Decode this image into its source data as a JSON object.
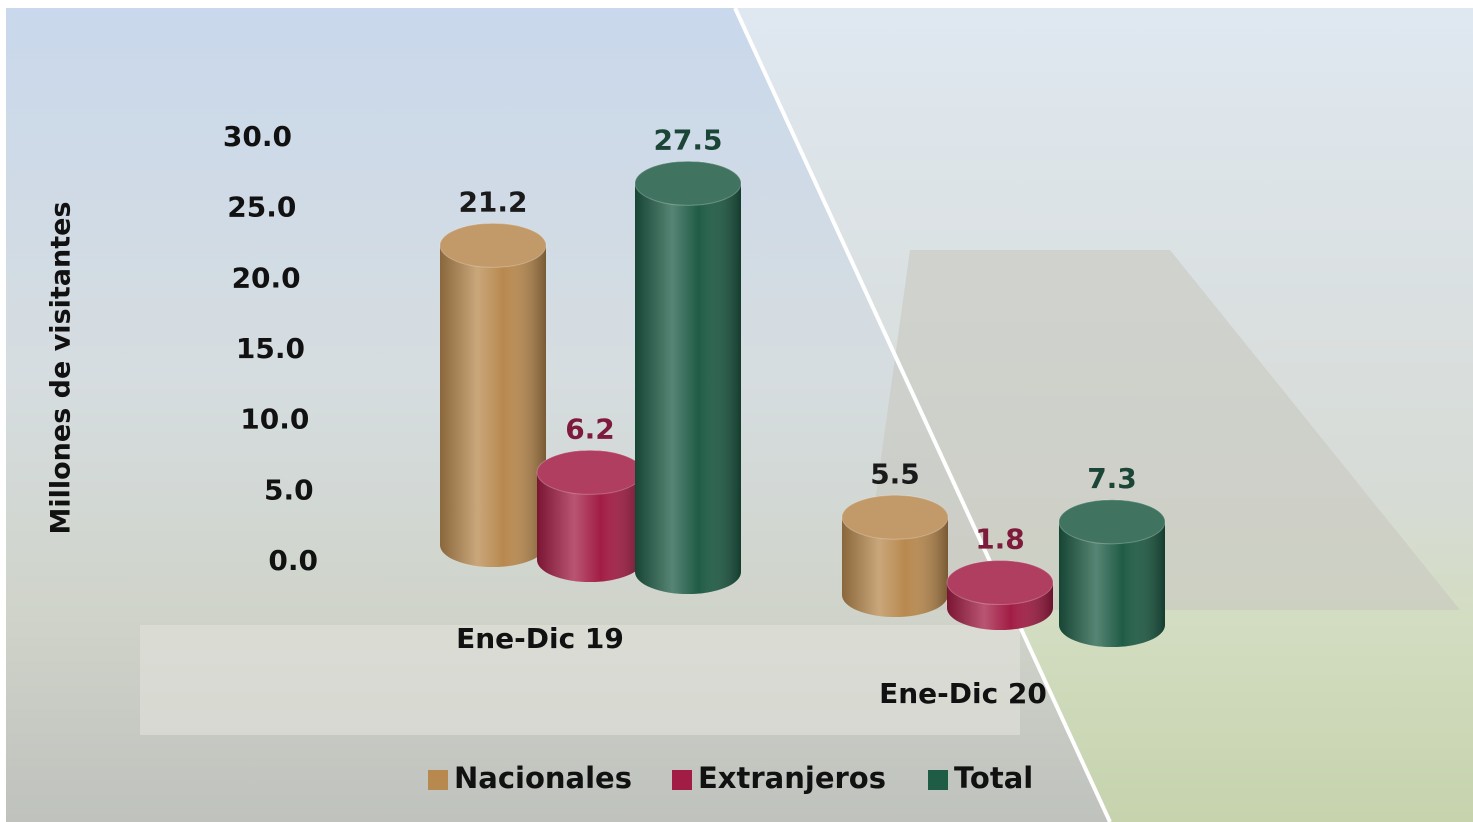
{
  "chart_data": {
    "type": "bar",
    "y_label": "Millones de visitantes",
    "categories": [
      "Ene-Dic 19",
      "Ene-Dic 20"
    ],
    "series": [
      {
        "name": "Nacionales",
        "color": "#b8894f",
        "label_color": "#1a1a1a",
        "values": [
          21.2,
          5.5
        ]
      },
      {
        "name": "Extranjeros",
        "color": "#a21d45",
        "label_color": "#7e1a3c",
        "values": [
          6.2,
          1.8
        ]
      },
      {
        "name": "Total",
        "color": "#1f5c46",
        "label_color": "#1b4536",
        "values": [
          27.5,
          7.3
        ]
      }
    ],
    "ylim": [
      0,
      30
    ],
    "yticks": [
      {
        "value": 0,
        "label": "0.0"
      },
      {
        "value": 5,
        "label": "5.0"
      },
      {
        "value": 10,
        "label": "10.0"
      },
      {
        "value": 15,
        "label": "15.0"
      },
      {
        "value": 20,
        "label": "20.0"
      },
      {
        "value": 25,
        "label": "25.0"
      },
      {
        "value": 30,
        "label": "30.0"
      }
    ],
    "legend": "bottom"
  }
}
